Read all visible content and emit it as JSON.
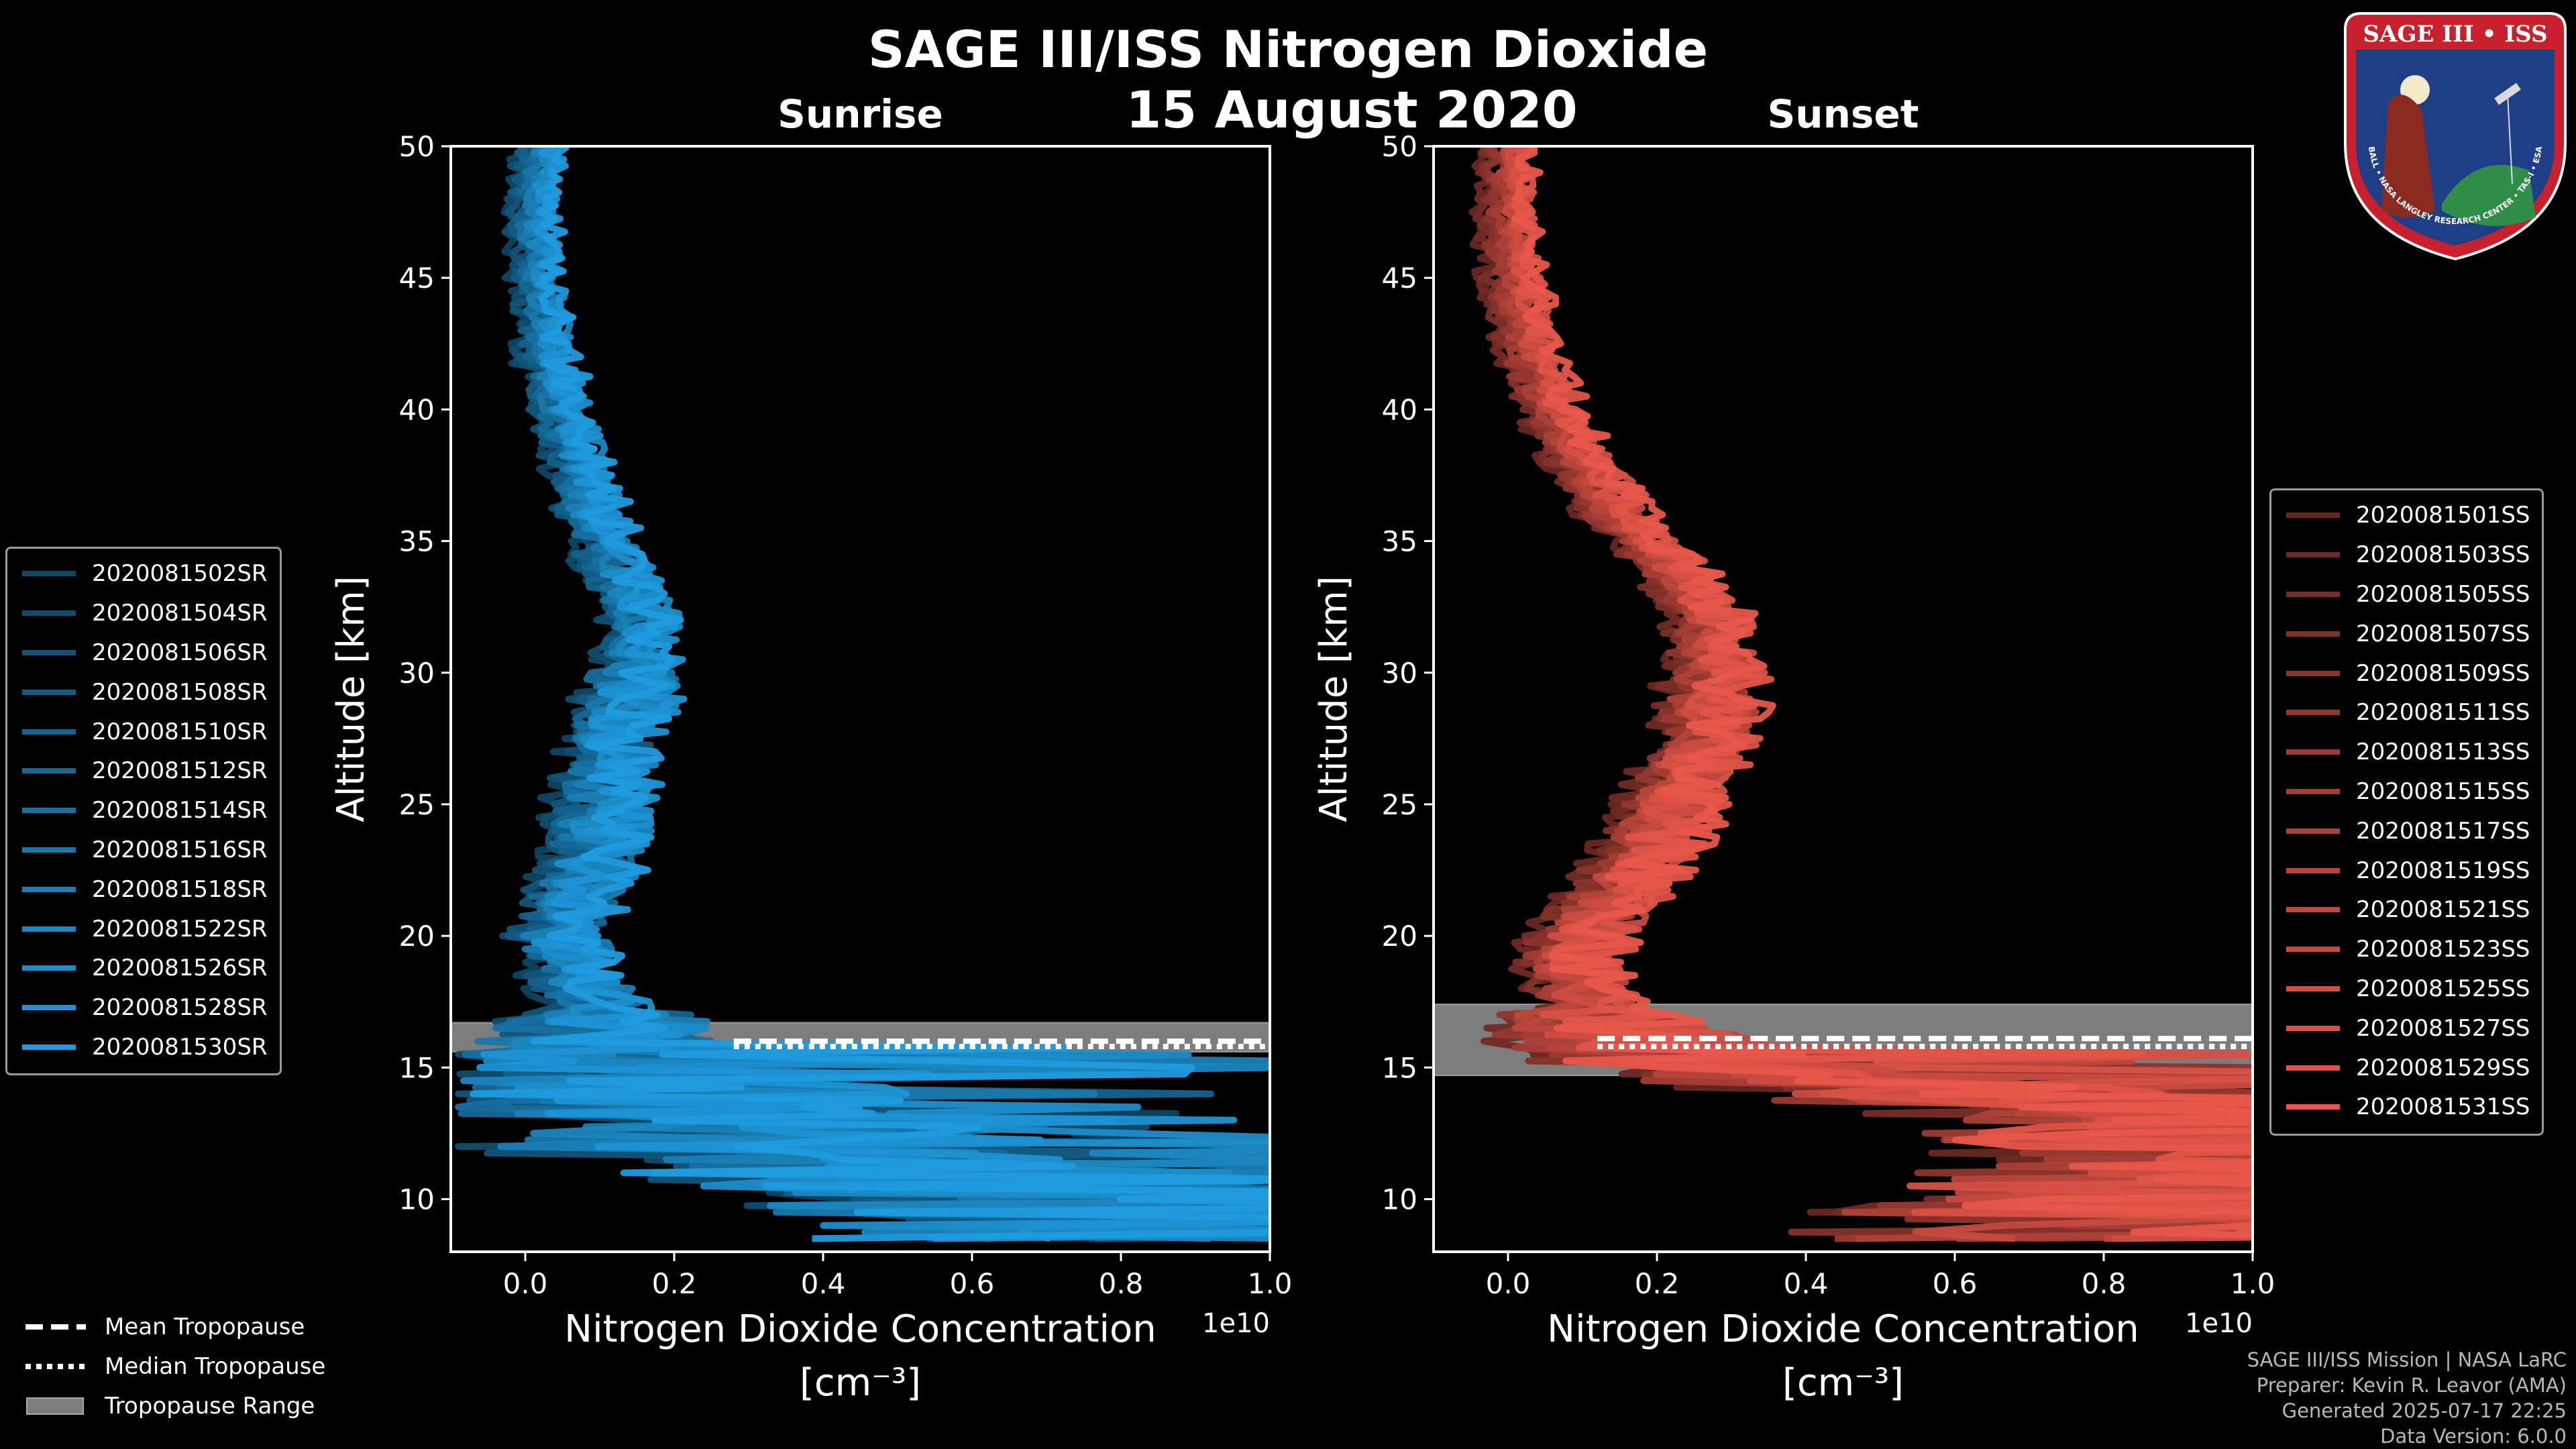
{
  "title": "SAGE III/ISS Nitrogen Dioxide",
  "date": "15 August 2020",
  "colors": {
    "sunrise": "#1f9bde",
    "sunset": "#e8574a",
    "range": "#7d7d7d"
  },
  "chart_data": [
    {
      "type": "line",
      "panel": "Sunrise",
      "title": "Sunrise",
      "xlabel": "Nitrogen Dioxide Concentration",
      "xunit": "[cm⁻³]",
      "ylabel": "Altitude [km]",
      "xlim": [
        -0.1,
        1.0
      ],
      "ylim": [
        8,
        50
      ],
      "x_scale_label": "1e10",
      "x_ticks": [
        "0.0",
        "0.2",
        "0.4",
        "0.6",
        "0.8",
        "1.0"
      ],
      "y_ticks": [
        "10",
        "15",
        "20",
        "25",
        "30",
        "35",
        "40",
        "45",
        "50"
      ],
      "legend": [
        "2020081502SR",
        "2020081504SR",
        "2020081506SR",
        "2020081508SR",
        "2020081510SR",
        "2020081512SR",
        "2020081514SR",
        "2020081516SR",
        "2020081518SR",
        "2020081522SR",
        "2020081526SR",
        "2020081528SR",
        "2020081530SR"
      ],
      "mean_profile": {
        "altitude": [
          50,
          47,
          45,
          42,
          40,
          38,
          36,
          34,
          32,
          30,
          28,
          26,
          24,
          22,
          20,
          19,
          18,
          17,
          16,
          15,
          14,
          13,
          12,
          11,
          10,
          9
        ],
        "value": [
          0.02,
          0.01,
          0.02,
          0.03,
          0.05,
          0.07,
          0.09,
          0.12,
          0.16,
          0.15,
          0.13,
          0.11,
          0.1,
          0.08,
          0.05,
          0.06,
          0.08,
          0.12,
          0.1,
          0.15,
          0.2,
          0.25,
          0.3,
          0.55,
          0.8,
          0.95
        ]
      },
      "tropopause": {
        "mean_km": 16.0,
        "median_km": 15.8,
        "range_km": [
          15.6,
          16.7
        ],
        "x_start": 0.28
      }
    },
    {
      "type": "line",
      "panel": "Sunset",
      "title": "Sunset",
      "xlabel": "Nitrogen Dioxide Concentration",
      "xunit": "[cm⁻³]",
      "ylabel": "Altitude [km]",
      "xlim": [
        -0.1,
        1.0
      ],
      "ylim": [
        8,
        50
      ],
      "x_scale_label": "1e10",
      "x_ticks": [
        "0.0",
        "0.2",
        "0.4",
        "0.6",
        "0.8",
        "1.0"
      ],
      "y_ticks": [
        "10",
        "15",
        "20",
        "25",
        "30",
        "35",
        "40",
        "45",
        "50"
      ],
      "legend": [
        "2020081501SS",
        "2020081503SS",
        "2020081505SS",
        "2020081507SS",
        "2020081509SS",
        "2020081511SS",
        "2020081513SS",
        "2020081515SS",
        "2020081517SS",
        "2020081519SS",
        "2020081521SS",
        "2020081523SS",
        "2020081525SS",
        "2020081527SS",
        "2020081529SS",
        "2020081531SS"
      ],
      "mean_profile": {
        "altitude": [
          50,
          47,
          45,
          42,
          40,
          38,
          36,
          34,
          32,
          30,
          28,
          26,
          24,
          22,
          20,
          19,
          18,
          17,
          16,
          15,
          14,
          13,
          12,
          11,
          10,
          9
        ],
        "value": [
          0.0,
          0.0,
          0.01,
          0.03,
          0.06,
          0.1,
          0.15,
          0.22,
          0.27,
          0.28,
          0.27,
          0.24,
          0.2,
          0.16,
          0.1,
          0.08,
          0.1,
          0.12,
          0.15,
          0.3,
          0.6,
          0.9,
          1.0,
          1.0,
          1.0,
          1.0
        ]
      },
      "tropopause": {
        "mean_km": 16.1,
        "median_km": 15.8,
        "range_km": [
          14.7,
          17.4
        ],
        "x_start": 0.12
      }
    }
  ],
  "tropopause_legend": [
    "Mean Tropopause",
    "Median Tropopause",
    "Tropopause Range"
  ],
  "footer": [
    "SAGE III/ISS Mission | NASA LaRC",
    "Preparer: Kevin R. Leavor (AMA)",
    "Generated 2025-07-17 22:25",
    "Data Version: 6.0.0"
  ],
  "logo": {
    "name": "SAGE III • ISS",
    "ring_text": "BALL • NASA LANGLEY RESEARCH CENTER • TAS-I • ESA"
  }
}
